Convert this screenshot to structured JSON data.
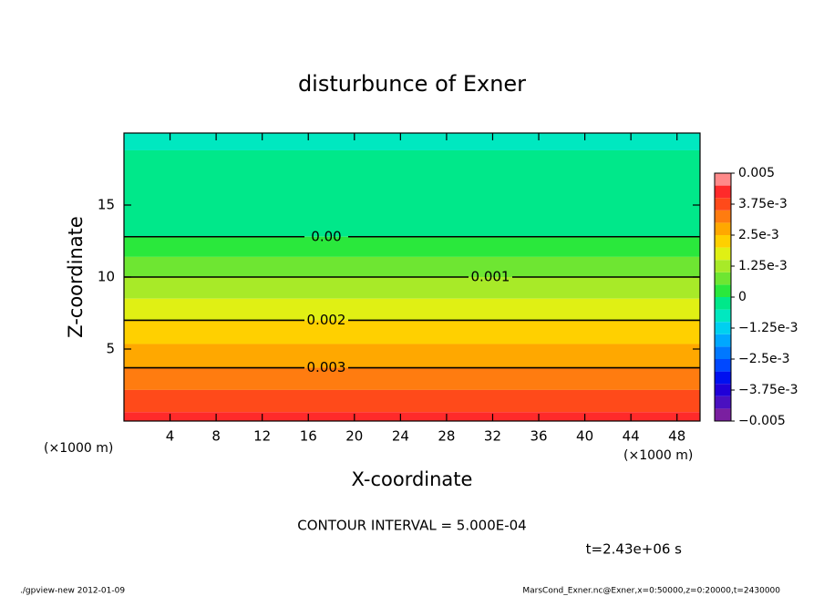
{
  "chart_data": {
    "type": "contour",
    "title": "disturbunce of Exner",
    "x_label": "X-coordinate",
    "y_label": "Z-coordinate",
    "x_unit": "(×1000 m)",
    "xlim": [
      0,
      50
    ],
    "xticks": [
      4,
      8,
      12,
      16,
      20,
      24,
      28,
      32,
      36,
      40,
      44,
      48
    ],
    "ylim": [
      0,
      20
    ],
    "yticks": [
      5,
      10,
      15
    ],
    "profile": {
      "z": [
        0,
        3.7,
        7,
        10,
        12.8,
        20
      ],
      "values": [
        0.0042,
        0.003,
        0.002,
        0.001,
        0,
        -0.0006
      ]
    },
    "contours": {
      "levels": [
        0,
        0.001,
        0.002,
        0.003
      ],
      "value_labels": [
        "0.00",
        "0.001",
        "0.002",
        "0.003"
      ]
    },
    "colorbar": {
      "levels": [
        -0.005,
        -0.0045,
        -0.004,
        -0.0035,
        -0.003,
        -0.0025,
        -0.002,
        -0.0015,
        -0.001,
        -0.0005,
        0,
        0.0005,
        0.001,
        0.0015,
        0.002,
        0.0025,
        0.003,
        0.0035,
        0.004,
        0.0045,
        0.005
      ],
      "colors": [
        "#7a1fa0",
        "#4a10c0",
        "#2000d8",
        "#0010f0",
        "#0048ff",
        "#0078ff",
        "#00a8ff",
        "#00d0f0",
        "#00e8c0",
        "#00e88a",
        "#2ae83c",
        "#6ee632",
        "#a8ea28",
        "#e0f014",
        "#ffd000",
        "#ffa800",
        "#ff7c10",
        "#ff4a1a",
        "#ff2a2a",
        "#ff8a8a"
      ],
      "ticks": [
        0.005,
        {
          "value": 0.00375,
          "label": "3.75e-3"
        },
        {
          "value": 0.0025,
          "label": "2.5e-3"
        },
        {
          "value": 0.00125,
          "label": "1.25e-3"
        },
        0,
        {
          "value": -0.00125,
          "label": "−1.25e-3"
        },
        {
          "value": -0.0025,
          "label": "−2.5e-3"
        },
        {
          "value": -0.00375,
          "label": "−3.75e-3"
        },
        {
          "value": -0.005,
          "label": "−0.005"
        }
      ]
    },
    "contour_interval": "CONTOUR INTERVAL = 5.000E-04",
    "time_label": "t=2.43e+06 s",
    "footer_left": "./gpview-new   2012-01-09",
    "footer_right": "MarsCond_Exner.nc@Exner,x=0:50000,z=0:20000,t=2430000"
  }
}
